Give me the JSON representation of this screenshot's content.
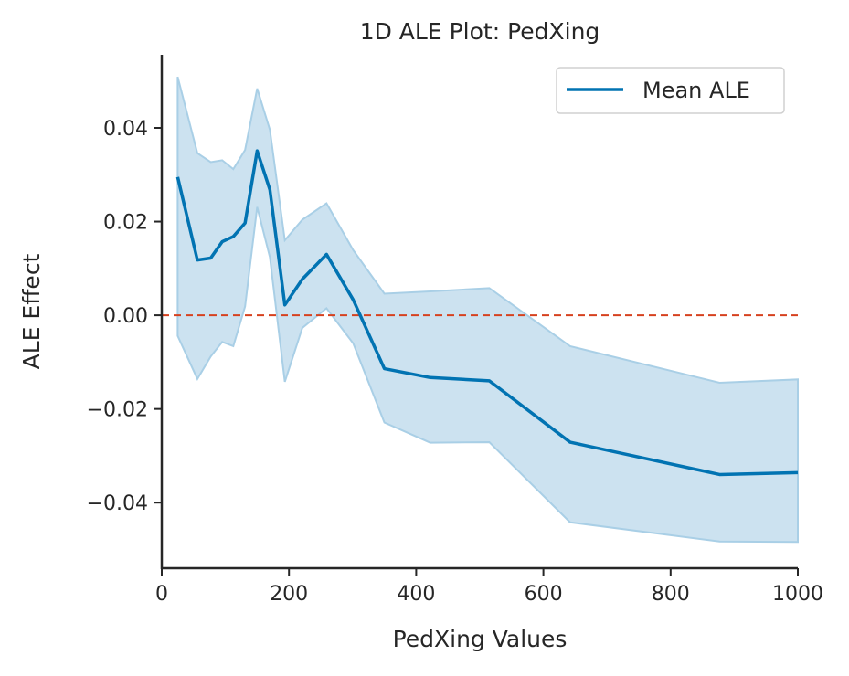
{
  "chart_data": {
    "type": "line",
    "title": "1D ALE Plot: PedXing",
    "xlabel": "PedXing Values",
    "ylabel": "ALE Effect",
    "xlim": [
      0,
      1000
    ],
    "ylim": [
      -0.054,
      0.0556
    ],
    "xticks": [
      0,
      200,
      400,
      600,
      800,
      1000
    ],
    "xtick_labels": [
      "0",
      "200",
      "400",
      "600",
      "800",
      "1000"
    ],
    "yticks": [
      -0.04,
      -0.02,
      0.0,
      0.02,
      0.04
    ],
    "ytick_labels": [
      "−0.04",
      "−0.02",
      "0.00",
      "0.02",
      "0.04"
    ],
    "grid": false,
    "legend": {
      "placement": "top-right",
      "entries": [
        "Mean ALE"
      ]
    },
    "reference_line": {
      "y": 0.0,
      "style": "dashed",
      "color": "#d6411e"
    },
    "x": [
      25,
      56,
      77,
      95,
      112.5,
      131,
      150,
      170,
      193.5,
      221,
      259,
      301,
      350,
      422,
      515,
      642,
      877,
      1000
    ],
    "series": [
      {
        "name": "Mean ALE",
        "color": "#0173b2",
        "values": [
          0.0295,
          0.0118,
          0.0122,
          0.0157,
          0.0168,
          0.0197,
          0.0351,
          0.0268,
          0.0022,
          0.0077,
          0.013,
          0.0033,
          -0.0114,
          -0.0133,
          -0.014,
          -0.0271,
          -0.034,
          -0.0336
        ]
      },
      {
        "name": "Upper bound",
        "color": "#cce2f0",
        "values": [
          0.0509,
          0.0346,
          0.0327,
          0.0331,
          0.0312,
          0.0353,
          0.0484,
          0.0396,
          0.016,
          0.0204,
          0.0239,
          0.0139,
          0.0046,
          0.0051,
          0.0058,
          -0.0066,
          -0.0144,
          -0.0137
        ]
      },
      {
        "name": "Lower bound",
        "color": "#cce2f0",
        "values": [
          -0.0044,
          -0.0136,
          -0.0088,
          -0.0057,
          -0.0066,
          0.0019,
          0.0231,
          0.0124,
          -0.0142,
          -0.0027,
          0.0015,
          -0.006,
          -0.0229,
          -0.0272,
          -0.0271,
          -0.0442,
          -0.0483,
          -0.0484
        ]
      }
    ]
  }
}
